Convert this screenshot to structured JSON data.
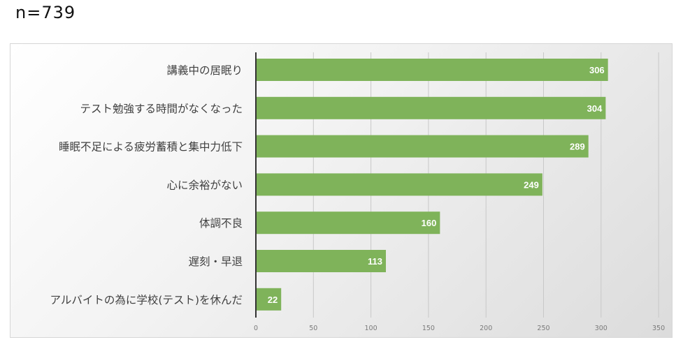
{
  "header": {
    "sample_size": "n=739"
  },
  "chart_data": {
    "type": "bar",
    "orientation": "horizontal",
    "categories": [
      "講義中の居眠り",
      "テスト勉強する時間がなくなった",
      "睡眠不足による疲労蓄積と集中力低下",
      "心に余裕がない",
      "体調不良",
      "遅刻・早退",
      "アルバイトの為に学校(テスト)を休んだ"
    ],
    "values": [
      306,
      304,
      289,
      249,
      160,
      113,
      22
    ],
    "xlim": [
      0,
      350
    ],
    "xticks": [
      "0",
      "50",
      "100",
      "150",
      "200",
      "250",
      "300",
      "350"
    ],
    "bar_color": "#7fb35a",
    "gridlines": true,
    "title": "",
    "xlabel": "",
    "ylabel": ""
  }
}
